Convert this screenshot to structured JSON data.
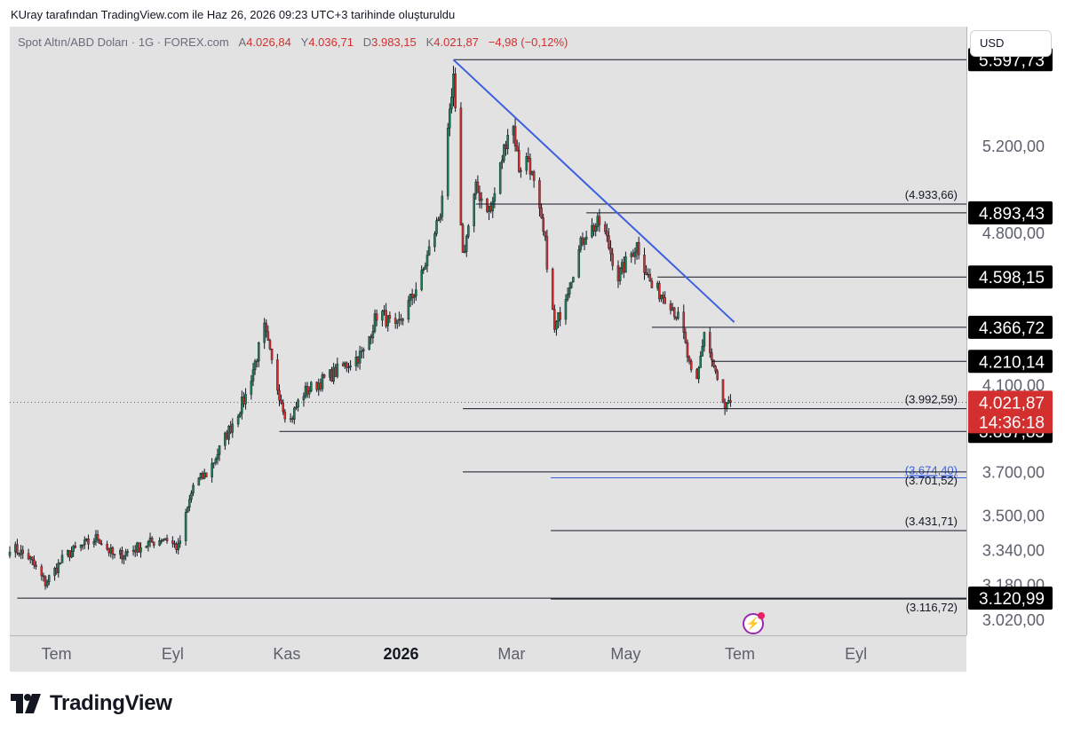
{
  "header": {
    "text": "KUray tarafından TradingView.com ile Haz 26, 2026 09:23 UTC+3 tarihinde oluşturuldu"
  },
  "legend": {
    "symbol": "Spot Altın/ABD Doları · 1G · FOREX.com",
    "open_label": "A",
    "open": "4.026,84",
    "high_label": "Y",
    "high": "4.036,71",
    "low_label": "D",
    "low": "3.983,15",
    "close_label": "K",
    "close": "4.021,87",
    "change": "−4,98 (−0,12%)"
  },
  "currency_button": "USD",
  "brand": {
    "name": "TradingView"
  },
  "colors": {
    "up": "#1e7d55",
    "down": "#d32f2f",
    "trendline": "#3b5fe0",
    "blue_level": "#3b5fe0",
    "price_badge": "#d32f2f",
    "level_badge": "#000000",
    "background": "#e2e2e2"
  },
  "icons": {
    "brand_logo": "tradingview-logo-icon",
    "bolt": "lightning-bolt-icon"
  },
  "chart_data": {
    "type": "candlestick",
    "symbol": "XAUUSD",
    "timeframe": "1D",
    "x_tick_labels": [
      "Tem",
      "Eyl",
      "Kas",
      "2026",
      "Mar",
      "May",
      "Tem",
      "Eyl"
    ],
    "y_tick_labels": [
      "5.200,00",
      "4.800,00",
      "4.100,00",
      "3.700,00",
      "3.500,00",
      "3.340,00",
      "3.180,00",
      "3.020,00"
    ],
    "y_tick_values": [
      5200,
      4800,
      4100,
      3700,
      3500,
      3340,
      3180,
      3020
    ],
    "price_badges": [
      {
        "label": "5.597,73",
        "value": 5597.73
      },
      {
        "label": "4.893,43",
        "value": 4893.43
      },
      {
        "label": "4.598,15",
        "value": 4598.15
      },
      {
        "label": "4.366,72",
        "value": 4366.72
      },
      {
        "label": "4.210,14",
        "value": 4210.14
      },
      {
        "label": "3.887,83",
        "value": 3887.83
      },
      {
        "label": "3.120,99",
        "value": 3120.99
      }
    ],
    "current_price": {
      "label": "4.021,87",
      "value": 4021.87,
      "countdown": "14:36:18"
    },
    "level_annotations": [
      {
        "label": "(4.933,66)",
        "value": 4933.66
      },
      {
        "label": "(3.992,59)",
        "value": 3992.59
      },
      {
        "label": "(3.674,40)",
        "value": 3674.4,
        "color": "blue"
      },
      {
        "label": "(3.701,52)",
        "value": 3701.52
      },
      {
        "label": "(3.431,71)",
        "value": 3431.71
      },
      {
        "label": "(3.116,72)",
        "value": 3116.72
      }
    ],
    "trendline": {
      "from": {
        "date": "2026-01-29",
        "value": 5597.73
      },
      "to": {
        "date": "2026-06-28",
        "value": 4390
      }
    },
    "y_range": [
      2950,
      5750
    ],
    "x_range": [
      "2025-06-06",
      "2026-10-30"
    ],
    "anchors": [
      {
        "date": "2025-06-06",
        "value": 3360
      },
      {
        "date": "2025-06-16",
        "value": 3310
      },
      {
        "date": "2025-06-25",
        "value": 3190
      },
      {
        "date": "2025-07-06",
        "value": 3320
      },
      {
        "date": "2025-07-23",
        "value": 3400
      },
      {
        "date": "2025-08-01",
        "value": 3310
      },
      {
        "date": "2025-08-15",
        "value": 3360
      },
      {
        "date": "2025-08-28",
        "value": 3400
      },
      {
        "date": "2025-09-04",
        "value": 3350
      },
      {
        "date": "2025-09-12",
        "value": 3640
      },
      {
        "date": "2025-09-20",
        "value": 3700
      },
      {
        "date": "2025-10-10",
        "value": 4050
      },
      {
        "date": "2025-10-20",
        "value": 4360
      },
      {
        "date": "2025-10-26",
        "value": 4120
      },
      {
        "date": "2025-11-02",
        "value": 3920
      },
      {
        "date": "2025-11-09",
        "value": 4060
      },
      {
        "date": "2025-11-25",
        "value": 4150
      },
      {
        "date": "2025-12-12",
        "value": 4250
      },
      {
        "date": "2025-12-20",
        "value": 4450
      },
      {
        "date": "2025-12-29",
        "value": 4350
      },
      {
        "date": "2026-01-12",
        "value": 4600
      },
      {
        "date": "2026-01-22",
        "value": 4900
      },
      {
        "date": "2026-01-29",
        "value": 5500
      },
      {
        "date": "2026-02-03",
        "value": 4700
      },
      {
        "date": "2026-02-10",
        "value": 5000
      },
      {
        "date": "2026-02-18",
        "value": 4900
      },
      {
        "date": "2026-03-01",
        "value": 5350
      },
      {
        "date": "2026-03-05",
        "value": 5100
      },
      {
        "date": "2026-03-10",
        "value": 5150
      },
      {
        "date": "2026-03-19",
        "value": 4750
      },
      {
        "date": "2026-03-24",
        "value": 4350
      },
      {
        "date": "2026-03-31",
        "value": 4550
      },
      {
        "date": "2026-04-09",
        "value": 4800
      },
      {
        "date": "2026-04-18",
        "value": 4850
      },
      {
        "date": "2026-04-27",
        "value": 4600
      },
      {
        "date": "2026-05-07",
        "value": 4750
      },
      {
        "date": "2026-05-15",
        "value": 4550
      },
      {
        "date": "2026-05-24",
        "value": 4500
      },
      {
        "date": "2026-05-31",
        "value": 4370
      },
      {
        "date": "2026-06-07",
        "value": 4050
      },
      {
        "date": "2026-06-12",
        "value": 4350
      },
      {
        "date": "2026-06-18",
        "value": 4150
      },
      {
        "date": "2026-06-23",
        "value": 3980
      },
      {
        "date": "2026-06-26",
        "value": 4021.87
      }
    ]
  }
}
